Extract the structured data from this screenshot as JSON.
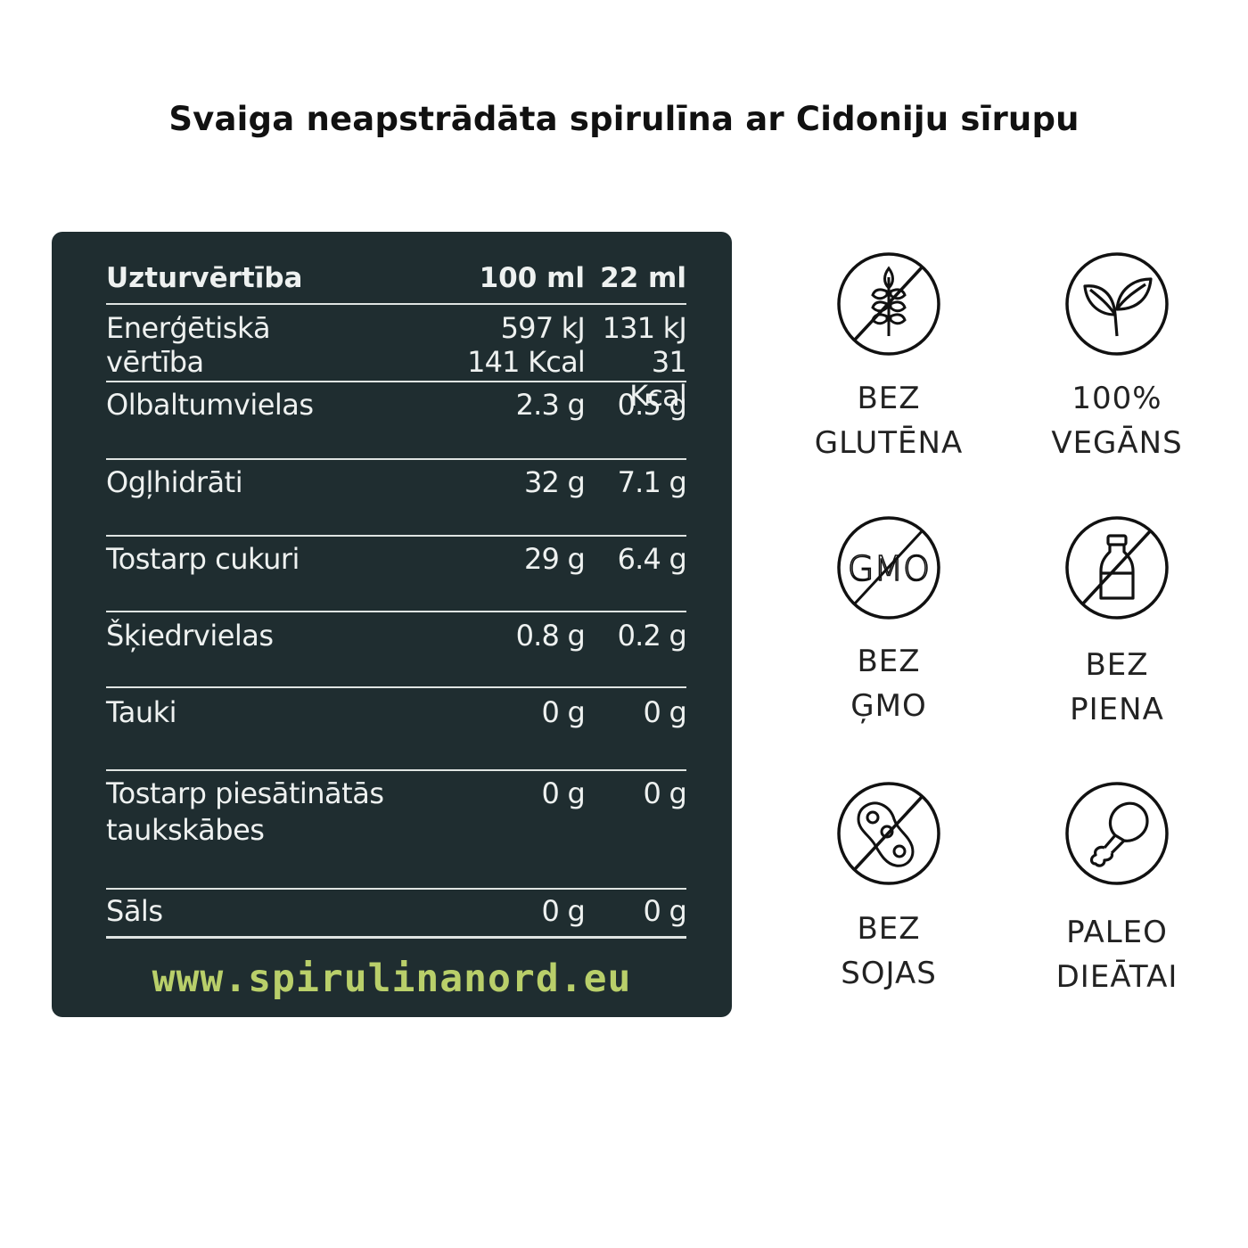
{
  "title": "Svaiga neapstrādāta spirulīna ar Cidoniju sīrupu",
  "table": {
    "header": {
      "label": "Uzturvērtība",
      "col1": "100 ml",
      "col2": "22 ml"
    },
    "energy": {
      "label_line1": "Enerģētiskā",
      "label_line2": "vērtība",
      "kj1": "597 kJ",
      "kj2": "131 kJ",
      "kcal1": "141 Kcal",
      "kcal2": "31 Kcal"
    },
    "rows": [
      {
        "label": "Olbaltumvielas",
        "v1": "2.3 g",
        "v2": "0.5 g"
      },
      {
        "label": "Ogļhidrāti",
        "v1": "32 g",
        "v2": "7.1 g"
      },
      {
        "label": "Tostarp cukuri",
        "v1": "29 g",
        "v2": "6.4 g"
      },
      {
        "label": "Šķiedrvielas",
        "v1": "0.8 g",
        "v2": "0.2 g"
      },
      {
        "label": "Tauki",
        "v1": "0 g",
        "v2": "0 g"
      },
      {
        "label_line1": "Tostarp piesātinātās",
        "label_line2": "taukskābes",
        "v1": "0 g",
        "v2": "0 g"
      },
      {
        "label": "Sāls",
        "v1": "0 g",
        "v2": "0 g"
      }
    ],
    "website": "www.spirulinanord.eu"
  },
  "badges": [
    {
      "icon": "gluten-free-icon",
      "line1": "BEZ",
      "line2": "GLUTĒNA"
    },
    {
      "icon": "leaf-icon",
      "line1": "100%",
      "line2": "VEGĀNS"
    },
    {
      "icon": "gmo-free-icon",
      "icon_text": "GMO",
      "line1": "BEZ",
      "line2": "ĢMO"
    },
    {
      "icon": "dairy-free-icon",
      "line1": "BEZ",
      "line2": "PIENA"
    },
    {
      "icon": "soy-free-icon",
      "line1": "BEZ",
      "line2": "SOJAS"
    },
    {
      "icon": "chicken-leg-icon",
      "line1": "PALEO",
      "line2": "DIEĀTAI"
    }
  ],
  "colors": {
    "panel": "#1f2d30",
    "text": "#eef1f0",
    "website": "#b9cf6a"
  }
}
